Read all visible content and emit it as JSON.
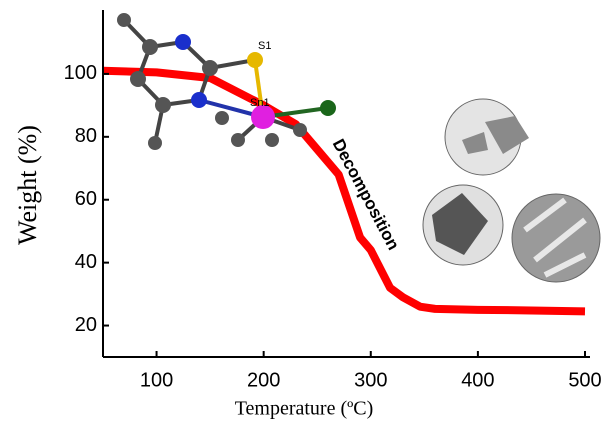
{
  "chart_data": {
    "type": "line",
    "x_label": "Temperature (ºC)",
    "y_label": "Weight (%)",
    "annotations": [
      "Decomposition",
      "S1",
      "Sn1"
    ],
    "x": [
      50,
      100,
      150,
      200,
      230,
      250,
      270,
      290,
      300,
      318,
      330,
      346,
      360,
      400,
      450,
      500
    ],
    "series": [
      {
        "color": "#ff0000",
        "values": [
          101,
          100.5,
          98.7,
          90,
          84,
          76,
          68,
          48,
          44,
          32,
          29,
          26,
          25.3,
          25,
          24.8,
          24.5
        ]
      }
    ],
    "xlim": [
      50,
      500
    ],
    "xticks": [
      100,
      200,
      300,
      400,
      500
    ],
    "ylim": [
      10,
      120
    ],
    "yticks": [
      20,
      40,
      60,
      80,
      100
    ]
  }
}
